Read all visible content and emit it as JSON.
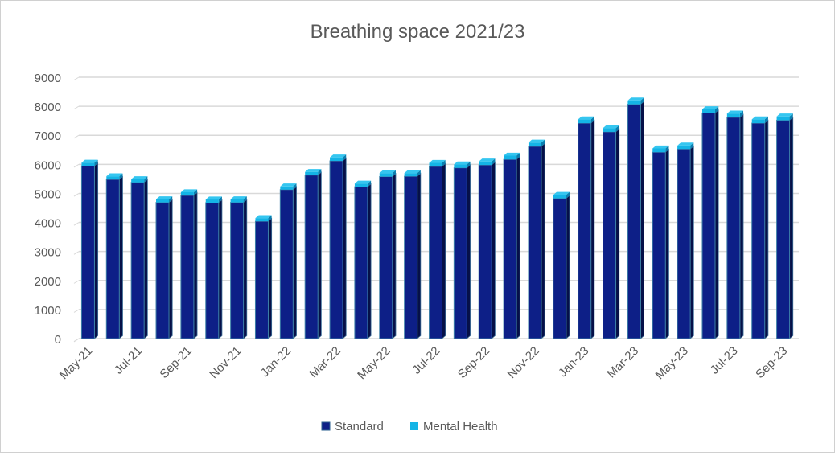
{
  "chart_data": {
    "type": "bar",
    "stacked": true,
    "style": "3d-column",
    "title": "Breathing space 2021/23",
    "xlabel": "",
    "ylabel": "",
    "ylim": [
      0,
      9000
    ],
    "yticks": [
      0,
      1000,
      2000,
      3000,
      4000,
      5000,
      6000,
      7000,
      8000,
      9000
    ],
    "grid": true,
    "legend_position": "bottom",
    "categories": [
      "May-21",
      "Jun-21",
      "Jul-21",
      "Aug-21",
      "Sep-21",
      "Oct-21",
      "Nov-21",
      "Dec-21",
      "Jan-22",
      "Feb-22",
      "Mar-22",
      "Apr-22",
      "May-22",
      "Jun-22",
      "Jul-22",
      "Aug-22",
      "Sep-22",
      "Oct-22",
      "Nov-22",
      "Dec-22",
      "Jan-23",
      "Feb-23",
      "Mar-23",
      "Apr-23",
      "May-23",
      "Jun-23",
      "Jul-23",
      "Aug-23",
      "Sep-23"
    ],
    "tick_labels": [
      "May-21",
      "Jul-21",
      "Sep-21",
      "Nov-21",
      "Jan-22",
      "Mar-22",
      "May-22",
      "Jul-22",
      "Sep-22",
      "Nov-22",
      "Jan-23",
      "Mar-23",
      "May-23",
      "Jul-23",
      "Sep-23"
    ],
    "series": [
      {
        "name": "Standard",
        "color": "#0d1f87",
        "values": [
          5950,
          5480,
          5380,
          4690,
          4930,
          4680,
          4690,
          4040,
          5130,
          5630,
          6120,
          5230,
          5580,
          5590,
          5930,
          5880,
          5980,
          6170,
          6620,
          4830,
          7420,
          7120,
          8070,
          6420,
          6530,
          7770,
          7620,
          7420,
          7520
        ]
      },
      {
        "name": "Mental Health",
        "color": "#14b4e6",
        "values": [
          110,
          110,
          110,
          110,
          110,
          110,
          110,
          110,
          110,
          110,
          120,
          110,
          120,
          110,
          120,
          120,
          120,
          130,
          130,
          120,
          130,
          130,
          130,
          130,
          120,
          130,
          130,
          130,
          130
        ]
      }
    ]
  }
}
